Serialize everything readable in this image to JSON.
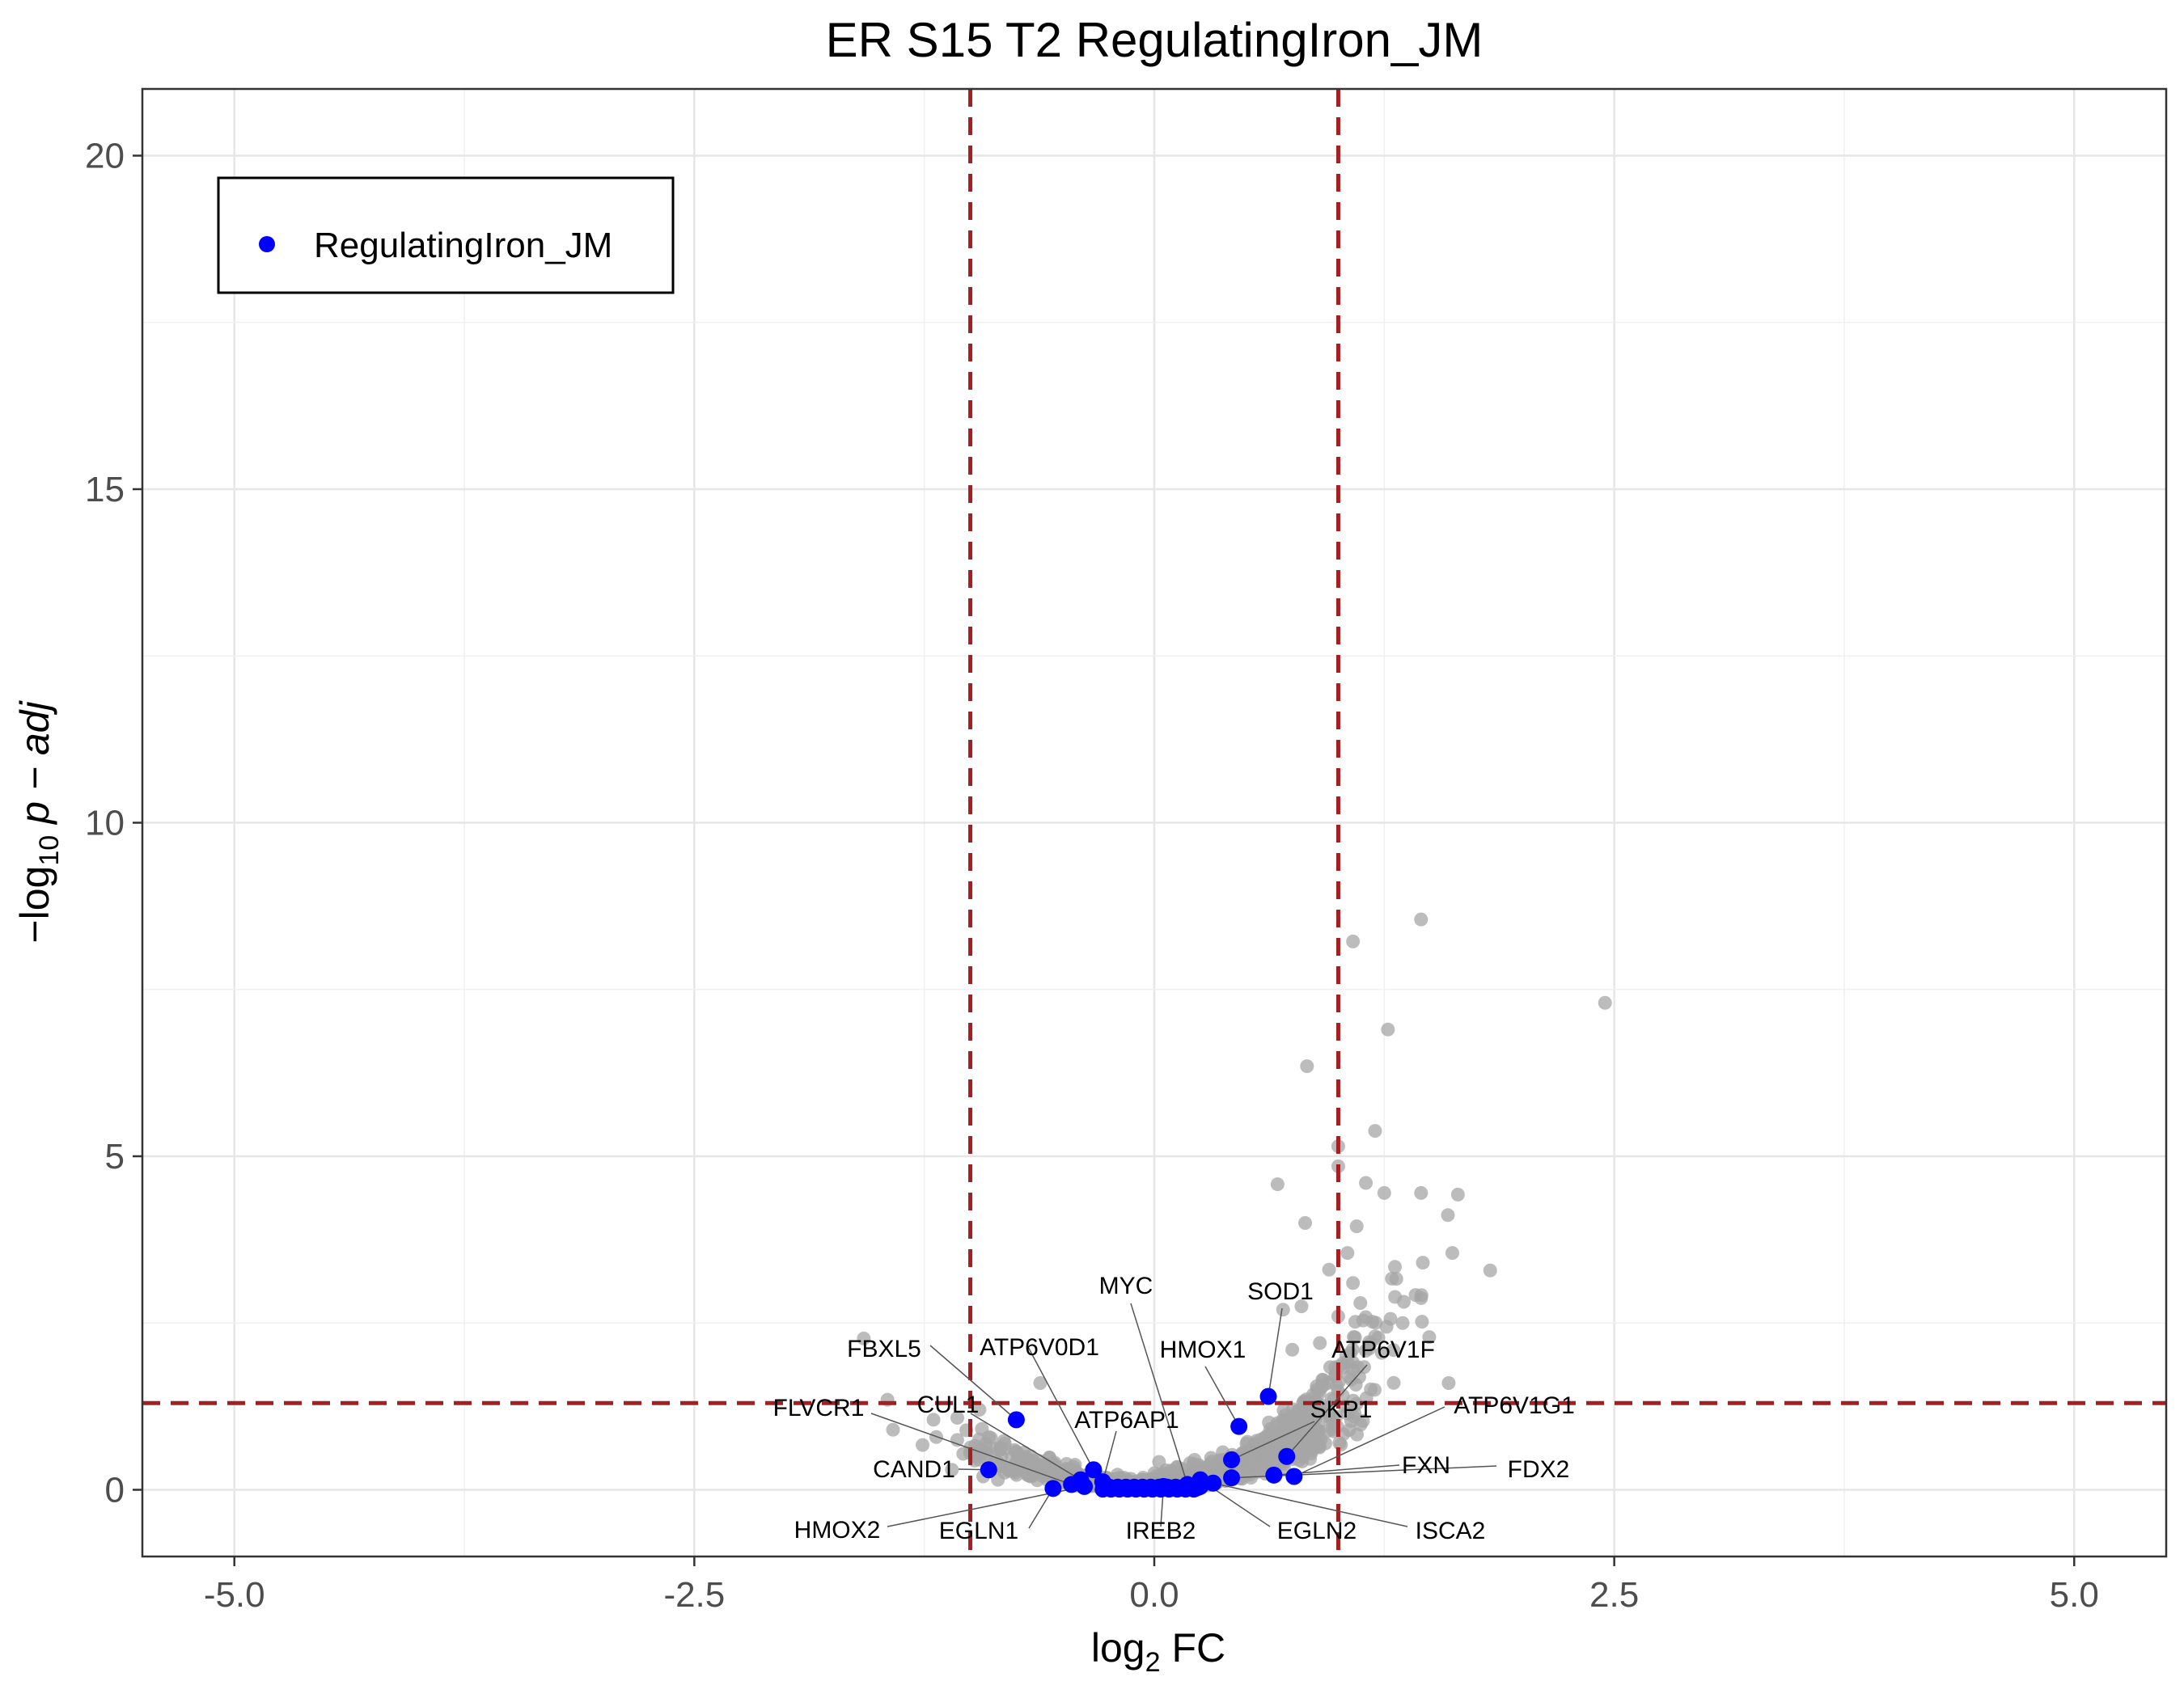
{
  "chart_data": {
    "type": "scatter",
    "title": "ER S15 T2 RegulatingIron_JM",
    "xlabel": "log2 FC",
    "ylabel": "−log10 p − adj",
    "xlim": [
      -5.5,
      5.5
    ],
    "ylim": [
      -1,
      21
    ],
    "x_ticks": [
      -5.0,
      -2.5,
      0.0,
      2.5,
      5.0
    ],
    "x_tick_labels": [
      "-5.0",
      "-2.5",
      "0.0",
      "2.5",
      "5.0"
    ],
    "y_ticks": [
      0,
      5,
      10,
      15,
      20
    ],
    "y_tick_labels": [
      "0",
      "5",
      "10",
      "15",
      "20"
    ],
    "grid": true,
    "thresholds": {
      "x": [
        -1,
        1
      ],
      "y": 1.3
    },
    "legend": {
      "position": "top-left",
      "entries": [
        "RegulatingIron_JM"
      ]
    },
    "colors": {
      "highlight": "#0000ff",
      "background_points": "#a6a6a6",
      "threshold_lines": "#a31f22"
    },
    "series": [
      {
        "name": "RegulatingIron_JM",
        "points": [
          {
            "gene": "SOD1",
            "x": 0.62,
            "y": 1.4
          },
          {
            "gene": "HMOX1",
            "x": 0.46,
            "y": 0.95
          },
          {
            "gene": "ATP6V1F",
            "x": 0.72,
            "y": 0.5
          },
          {
            "gene": "SKP1",
            "x": 0.42,
            "y": 0.45
          },
          {
            "gene": "ATP6V1G1",
            "x": 0.76,
            "y": 0.2
          },
          {
            "gene": "FXN",
            "x": 0.65,
            "y": 0.22
          },
          {
            "gene": "FDX2",
            "x": 0.42,
            "y": 0.18
          },
          {
            "gene": "ISCA2",
            "x": 0.32,
            "y": 0.1
          },
          {
            "gene": "EGLN2",
            "x": 0.25,
            "y": 0.15
          },
          {
            "gene": "IREB2",
            "x": 0.05,
            "y": 0.05
          },
          {
            "gene": "MYC",
            "x": 0.18,
            "y": 0.08
          },
          {
            "gene": "FBXL5",
            "x": -0.75,
            "y": 1.05
          },
          {
            "gene": "ATP6V0D1",
            "x": -0.33,
            "y": 0.3
          },
          {
            "gene": "CUL1",
            "x": -0.4,
            "y": 0.15
          },
          {
            "gene": "ATP6AP1",
            "x": -0.28,
            "y": 0.12
          },
          {
            "gene": "FLVCR1",
            "x": -0.45,
            "y": 0.08
          },
          {
            "gene": "CAND1",
            "x": -0.9,
            "y": 0.3
          },
          {
            "gene": "HMOX2",
            "x": -0.38,
            "y": 0.05
          },
          {
            "gene": "EGLN1",
            "x": -0.55,
            "y": 0.02
          }
        ]
      }
    ],
    "gene_labels": [
      {
        "text": "MYC"
      },
      {
        "text": "SOD1"
      },
      {
        "text": "FBXL5"
      },
      {
        "text": "ATP6V0D1"
      },
      {
        "text": "HMOX1"
      },
      {
        "text": "ATP6V1F"
      },
      {
        "text": "FLVCR1"
      },
      {
        "text": "CUL1"
      },
      {
        "text": "ATP6AP1"
      },
      {
        "text": "SKP1"
      },
      {
        "text": "ATP6V1G1"
      },
      {
        "text": "CAND1"
      },
      {
        "text": "FXN"
      },
      {
        "text": "FDX2"
      },
      {
        "text": "HMOX2"
      },
      {
        "text": "EGLN1"
      },
      {
        "text": "IREB2"
      },
      {
        "text": "EGLN2"
      },
      {
        "text": "ISCA2"
      }
    ]
  }
}
